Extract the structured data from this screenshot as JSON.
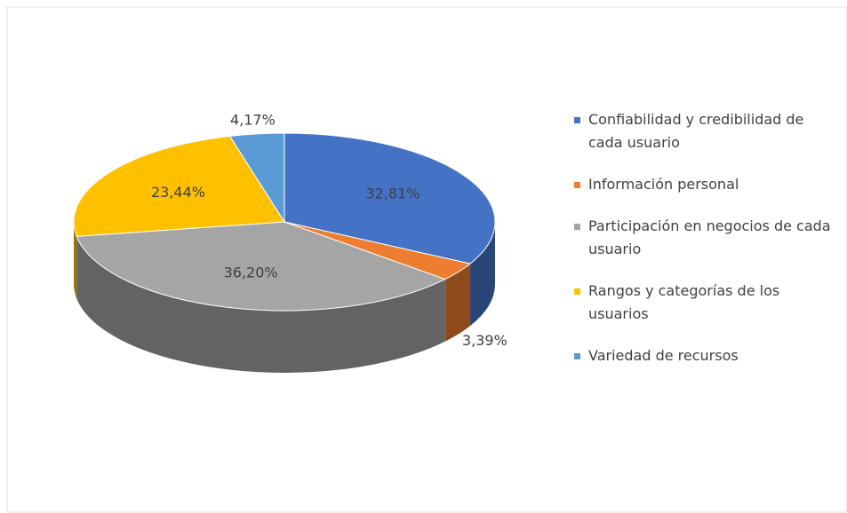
{
  "chart_data": {
    "type": "pie",
    "categories": [
      "Confiabilidad y credibilidad de cada usuario",
      "Información personal",
      "Participación en negocios de cada usuario",
      "Rangos y categorías de los usuarios",
      "Variedad de recursos"
    ],
    "values": [
      32.81,
      3.39,
      36.2,
      23.44,
      4.17
    ],
    "value_labels": [
      "32,81%",
      "3,39%",
      "36,20%",
      "23,44%",
      "4,17%"
    ],
    "colors": [
      "#4472c4",
      "#ed7d31",
      "#a5a5a5",
      "#ffc000",
      "#5b9bd5"
    ],
    "legend": "right"
  }
}
